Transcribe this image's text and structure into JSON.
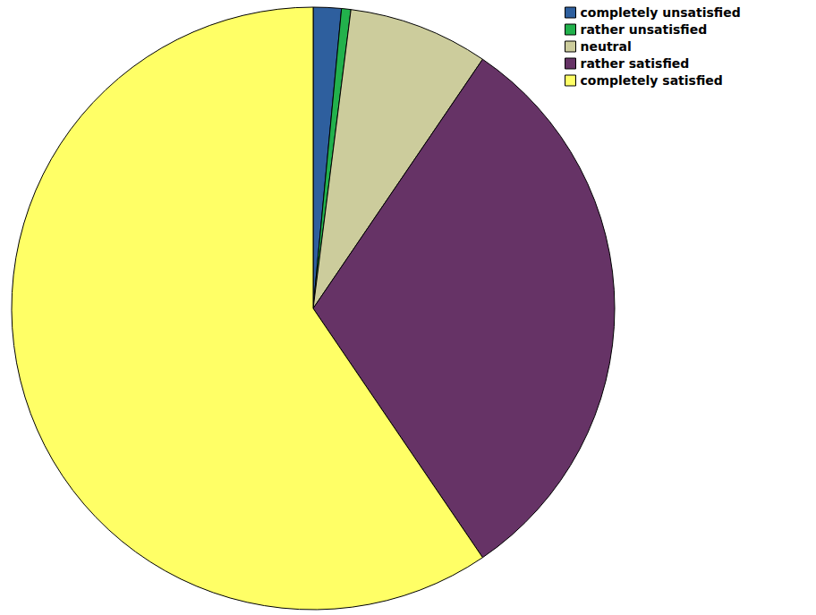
{
  "chart_data": {
    "type": "pie",
    "categories": [
      "completely unsatisfied",
      "rather unsatisfied",
      "neutral",
      "rather satisfied",
      "completely satisfied"
    ],
    "values": [
      1.5,
      0.5,
      7.5,
      31,
      59.5
    ],
    "colors": [
      "#2e5f9e",
      "#22b14c",
      "#cccc9c",
      "#663366",
      "#ffff66"
    ],
    "legend": "top-right"
  }
}
